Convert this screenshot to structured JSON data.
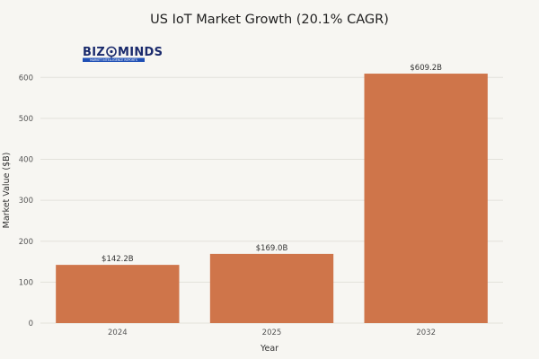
{
  "logo": {
    "text_left": "BIZ",
    "text_right": "MINDS",
    "tagline": "MARKET INTELLIGENCE REPORTS",
    "color": "#1a2a6c",
    "band_color": "#1f4fb5"
  },
  "chart_data": {
    "type": "bar",
    "title": "US IoT Market Growth (20.1% CAGR)",
    "xlabel": "Year",
    "ylabel": "Market Value ($B)",
    "categories": [
      "2024",
      "2025",
      "2032"
    ],
    "values": [
      142.2,
      169.0,
      609.2
    ],
    "data_labels": [
      "$142.2B",
      "$169.0B",
      "$609.2B"
    ],
    "ylim": [
      0,
      640
    ],
    "yticks": [
      0,
      100,
      200,
      300,
      400,
      500,
      600
    ],
    "grid": true,
    "bar_color": "#cf754a",
    "legend": "none"
  }
}
